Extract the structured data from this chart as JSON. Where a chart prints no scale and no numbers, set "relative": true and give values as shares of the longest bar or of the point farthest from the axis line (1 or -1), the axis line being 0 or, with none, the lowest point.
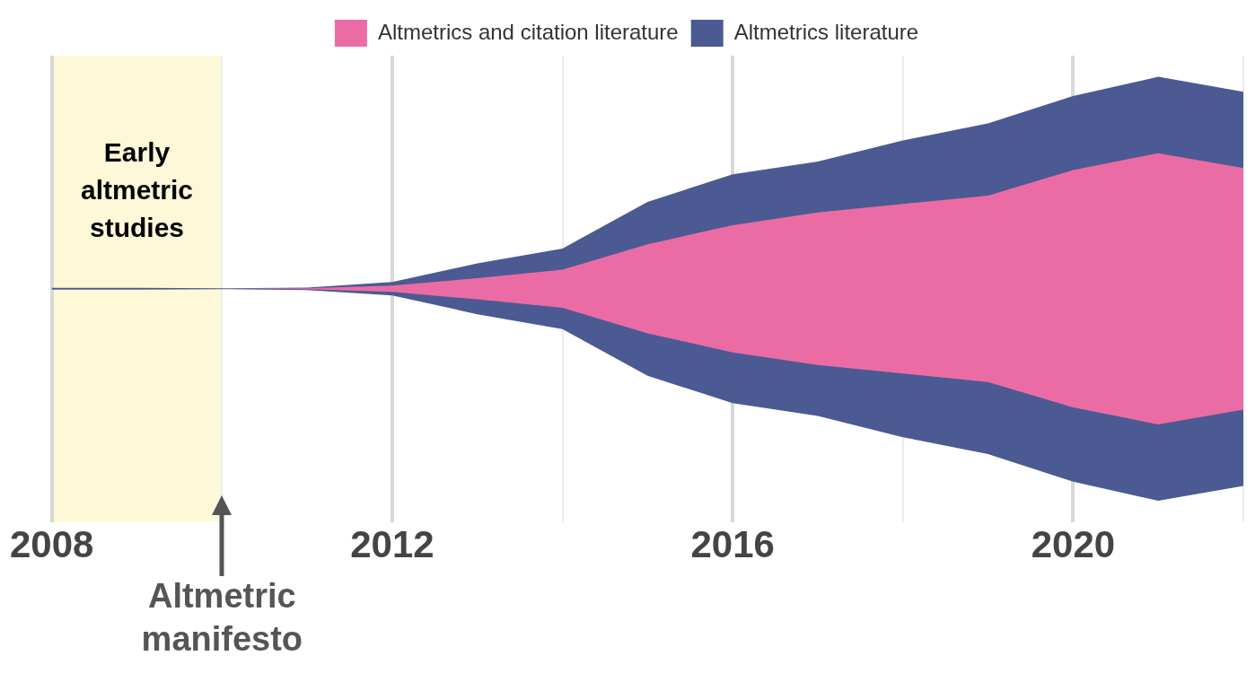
{
  "chart_data": {
    "type": "area",
    "stacked": true,
    "relative": true,
    "x": [
      2008,
      2009,
      2010,
      2011,
      2012,
      2013,
      2014,
      2015,
      2016,
      2017,
      2018,
      2019,
      2020,
      2021,
      2022
    ],
    "series": [
      {
        "name": "Altmetrics and citation literature",
        "color": "#eb6ca4",
        "values": [
          0,
          0,
          0,
          0.002,
          0.015,
          0.05,
          0.09,
          0.21,
          0.3,
          0.36,
          0.4,
          0.44,
          0.56,
          0.64,
          0.57
        ]
      },
      {
        "name": "Altmetrics literature",
        "color": "#4b5a92",
        "values": [
          0.004,
          0.004,
          0.002,
          0.004,
          0.017,
          0.07,
          0.1,
          0.2,
          0.24,
          0.24,
          0.3,
          0.34,
          0.35,
          0.36,
          0.36
        ]
      }
    ],
    "xlim": [
      2008,
      2022
    ],
    "xticks": [
      2008,
      {
        "value": 2010,
        "label": null
      },
      2012,
      {
        "value": 2014,
        "label": null
      },
      2016,
      {
        "value": 2018,
        "label": null
      },
      2020,
      {
        "value": 2022,
        "label": null
      }
    ],
    "grid": "x",
    "legend": "top",
    "bands": [
      {
        "axis": "x",
        "from": 2008,
        "to": 2010,
        "label": "Early altmetric studies",
        "color": "#fdf8d8"
      }
    ],
    "annotations": [
      "Altmetric manifesto"
    ]
  }
}
